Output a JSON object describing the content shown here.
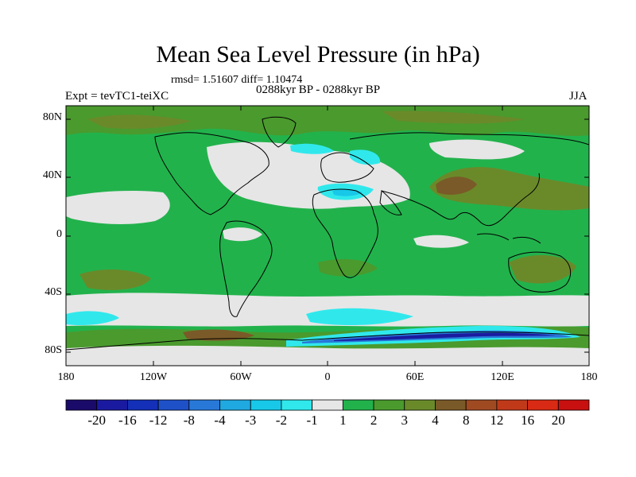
{
  "title": "Mean Sea Level Pressure (in hPa)",
  "stats": "rmsd= 1.51607 diff= 1.10474",
  "period": "0288kyr BP - 0288kyr BP",
  "experiment": "Expt = tevTC1-teiXC",
  "season": "JJA",
  "lat_labels": [
    "80N",
    "40N",
    "0",
    "40S",
    "80S"
  ],
  "lon_labels": [
    "180",
    "120W",
    "60W",
    "0",
    "60E",
    "120E",
    "180"
  ],
  "colorbar": {
    "labels": [
      "-20",
      "-16",
      "-12",
      "-8",
      "-4",
      "-3",
      "-2",
      "-1",
      "1",
      "2",
      "3",
      "4",
      "8",
      "12",
      "16",
      "20"
    ],
    "colors": [
      "#1a0a6a",
      "#1a1aa0",
      "#1430b8",
      "#1e50c8",
      "#2878d8",
      "#20a8e0",
      "#18c8e8",
      "#30e8ec",
      "#e6e6e6",
      "#22b24c",
      "#4a9a2e",
      "#6a8a2a",
      "#7a5a28",
      "#a04a22",
      "#c03a1a",
      "#d82a14",
      "#c81010"
    ]
  }
}
